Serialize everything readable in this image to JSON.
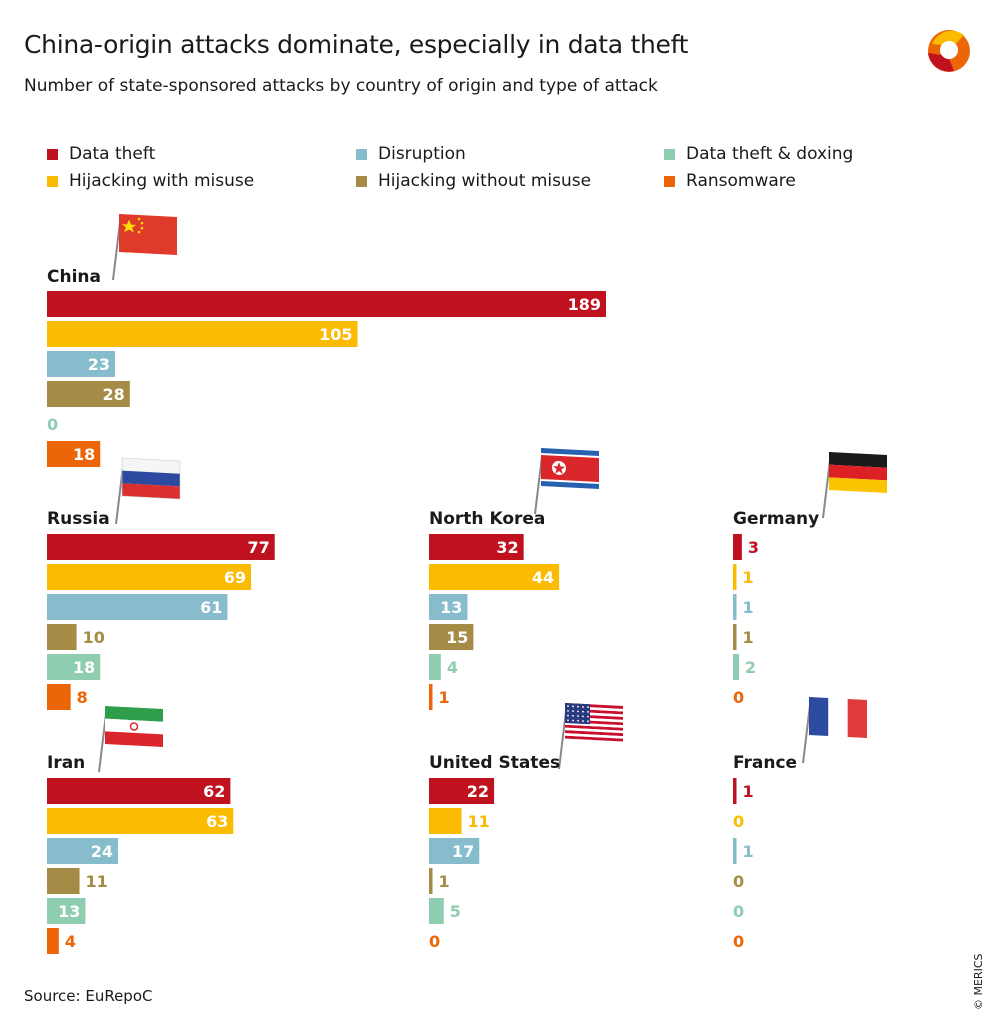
{
  "header": {
    "title": "China-origin attacks dominate, especially in data theft",
    "subtitle": "Number of state-sponsored attacks by country of origin and type of attack"
  },
  "legend": {
    "items": [
      {
        "label": "Data theft",
        "color": "#c0111f"
      },
      {
        "label": "Disruption",
        "color": "#86bccb"
      },
      {
        "label": "Data theft & doxing",
        "color": "#8ecdb0"
      },
      {
        "label": "Hijacking with misuse",
        "color": "#fbbb00"
      },
      {
        "label": "Hijacking without misuse",
        "color": "#a58b45"
      },
      {
        "label": "Ransomware",
        "color": "#ec6608"
      }
    ]
  },
  "footer": {
    "source": "Source: EuRepoC",
    "credit": "© MERICS"
  },
  "chart_data": {
    "type": "bar",
    "orientation": "horizontal",
    "series_order": [
      "Data theft",
      "Hijacking with misuse",
      "Disruption",
      "Hijacking without misuse",
      "Data theft & doxing",
      "Ransomware"
    ],
    "series_colors": [
      "#c0111f",
      "#fbbb00",
      "#86bccb",
      "#a58b45",
      "#8ecdb0",
      "#ec6608"
    ],
    "panels": [
      {
        "country": "China",
        "flag": "china",
        "values": [
          189,
          105,
          23,
          28,
          0,
          18
        ]
      },
      {
        "country": "Russia",
        "flag": "russia",
        "values": [
          77,
          69,
          61,
          10,
          18,
          8
        ]
      },
      {
        "country": "North Korea",
        "flag": "north-korea",
        "values": [
          32,
          44,
          13,
          15,
          4,
          1
        ]
      },
      {
        "country": "Germany",
        "flag": "germany",
        "values": [
          3,
          1,
          1,
          1,
          2,
          0
        ]
      },
      {
        "country": "Iran",
        "flag": "iran",
        "values": [
          62,
          63,
          24,
          11,
          13,
          4
        ]
      },
      {
        "country": "United States",
        "flag": "united-states",
        "values": [
          22,
          11,
          17,
          1,
          5,
          0
        ]
      },
      {
        "country": "France",
        "flag": "france",
        "values": [
          1,
          0,
          1,
          0,
          0,
          0
        ]
      }
    ]
  }
}
